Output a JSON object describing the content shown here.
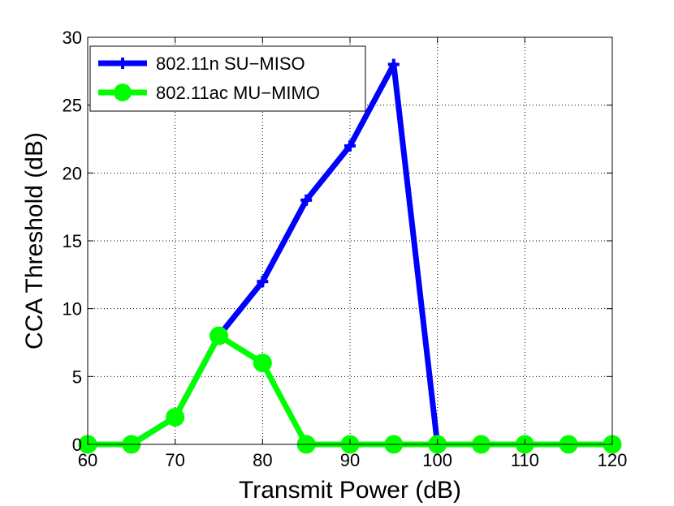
{
  "chart_data": {
    "type": "line",
    "xlabel": "Transmit Power (dB)",
    "ylabel": "CCA Threshold (dB)",
    "xlim": [
      60,
      120
    ],
    "ylim": [
      0,
      30
    ],
    "xticks": [
      60,
      70,
      80,
      90,
      100,
      110,
      120
    ],
    "yticks": [
      0,
      5,
      10,
      15,
      20,
      25,
      30
    ],
    "grid": true,
    "legend_position": "top-left",
    "x": [
      60,
      65,
      70,
      75,
      80,
      85,
      90,
      95,
      100,
      105,
      110,
      115,
      120
    ],
    "series": [
      {
        "name": "802.11n SU−MISO",
        "color": "#0000ff",
        "marker": "plus",
        "values": [
          0,
          0,
          2,
          8,
          12,
          18,
          22,
          28,
          0,
          0,
          0,
          0,
          0
        ]
      },
      {
        "name": "802.11ac MU−MIMO",
        "color": "#00ff00",
        "marker": "circle",
        "values": [
          0,
          0,
          2,
          8,
          6,
          0,
          0,
          0,
          0,
          0,
          0,
          0,
          0
        ]
      }
    ]
  }
}
